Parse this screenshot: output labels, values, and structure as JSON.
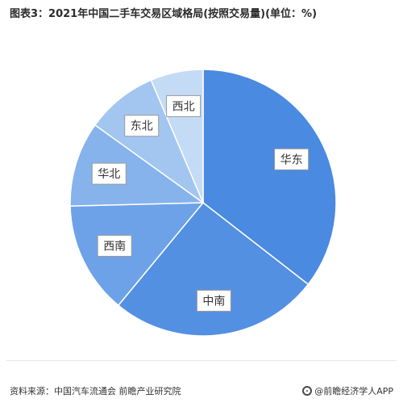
{
  "header": {
    "title": "图表3：2021年中国二手车交易区域格局(按照交易量)(单位：%)"
  },
  "chart_data": {
    "type": "pie",
    "title": "图表3：2021年中国二手车交易区域格局(按照交易量)(单位：%)",
    "slices": [
      {
        "label": "华东",
        "value": 35.5,
        "color": "#4a8ae0"
      },
      {
        "label": "中南",
        "value": 25.5,
        "color": "#5490e2"
      },
      {
        "label": "西南",
        "value": 13.6,
        "color": "#6da2e8"
      },
      {
        "label": "华北",
        "value": 10.3,
        "color": "#86b3ec"
      },
      {
        "label": "东北",
        "value": 8.7,
        "color": "#a3c6f1"
      },
      {
        "label": "西北",
        "value": 6.4,
        "color": "#c4dbf6"
      }
    ]
  },
  "footer": {
    "source": "资料来源：中国汽车流通会 前瞻产业研究院",
    "brand": "@前瞻经济学人APP"
  }
}
